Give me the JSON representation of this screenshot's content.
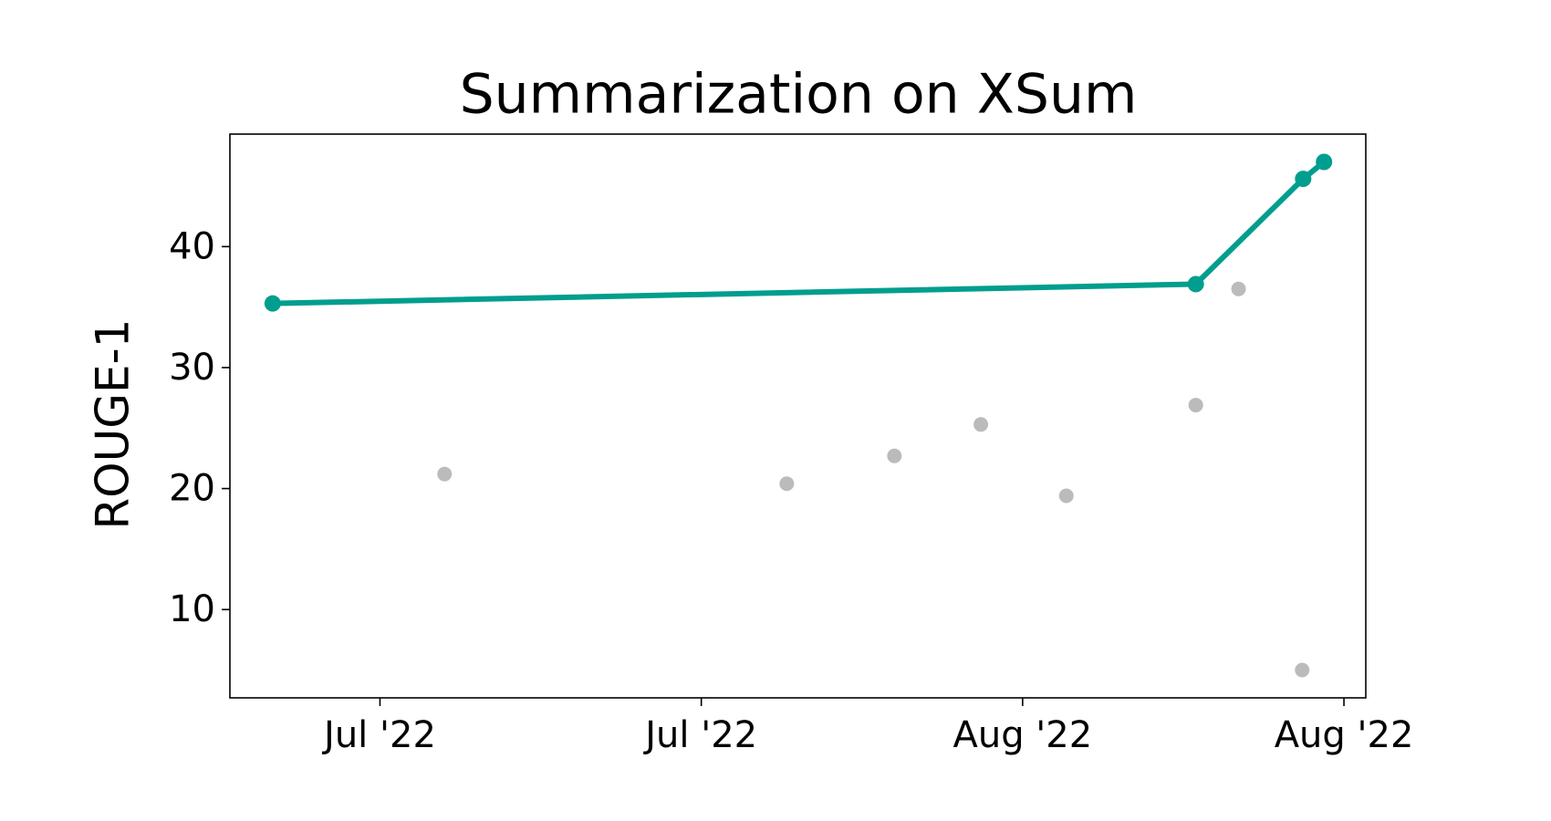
{
  "chart_data": {
    "type": "line",
    "title": "Summarization on XSum",
    "ylabel": "ROUGE-1",
    "xlim": [
      -0.467,
      3.068
    ],
    "xticks": [
      {
        "value": 0,
        "label": "Jul '22"
      },
      {
        "value": 1,
        "label": "Jul '22"
      },
      {
        "value": 2,
        "label": "Aug '22"
      },
      {
        "value": 3,
        "label": "Aug '22"
      }
    ],
    "ylim": [
      2.7,
      49.3
    ],
    "yticks": [
      10,
      20,
      30,
      40
    ],
    "grid": false,
    "series": [
      {
        "color": "#009e8e",
        "line": true,
        "x": [
          -0.334,
          2.539,
          2.873,
          2.938
        ],
        "values": [
          35.3,
          36.9,
          45.6,
          47.0
        ]
      },
      {
        "color": "#bbbbbb",
        "line": false,
        "x": [
          0.201,
          1.266,
          1.601,
          1.87,
          2.136,
          2.539,
          2.672,
          2.87
        ],
        "values": [
          21.2,
          20.4,
          22.7,
          25.3,
          19.4,
          26.9,
          36.5,
          5.0
        ]
      }
    ]
  }
}
